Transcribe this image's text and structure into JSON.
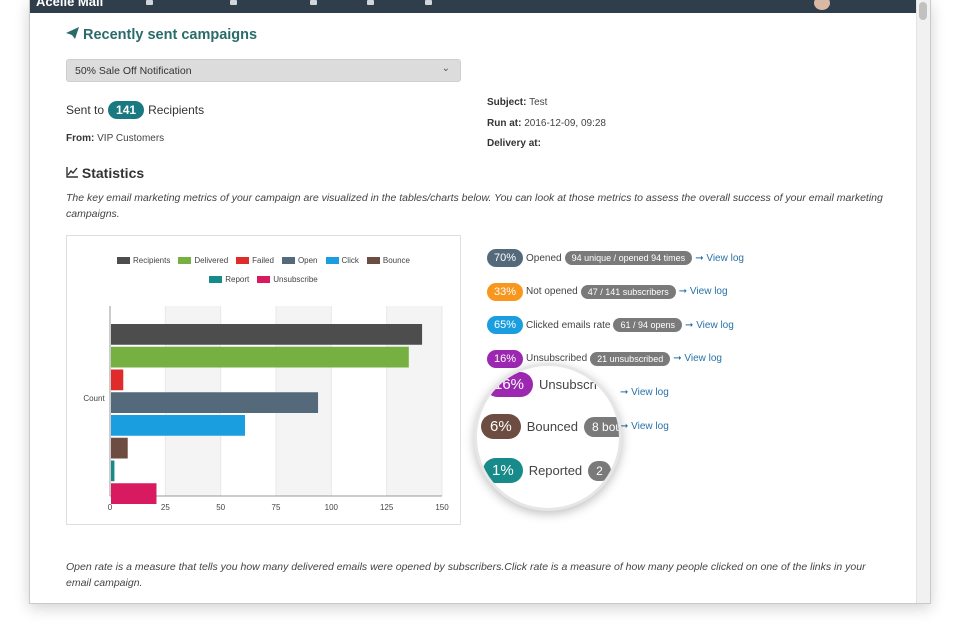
{
  "app": {
    "brand": "Acelle Mail"
  },
  "campaign": {
    "section_title": "Recently sent campaigns",
    "selected": "50% Sale Off Notification",
    "sent_to_prefix": "Sent to",
    "recipients_count": "141",
    "sent_to_suffix": "Recipients",
    "from_label": "From:",
    "from_value": "VIP Customers",
    "subject_label": "Subject:",
    "subject_value": "Test",
    "run_at_label": "Run at:",
    "run_at_value": "2016-12-09, 09:28",
    "delivery_at_label": "Delivery at:",
    "delivery_at_value": ""
  },
  "statistics": {
    "title": "Statistics",
    "description": "The key email marketing metrics of your campaign are visualized in the tables/charts below. You can look at those metrics to assess the overall success of your email marketing campaigns.",
    "footnote": "Open rate is a measure that tells you how many delivered emails were opened by subscribers.Click rate is a measure of how many people clicked on one of the links in your email campaign."
  },
  "chart_data": {
    "type": "bar",
    "orientation": "horizontal",
    "ylabel": "Count",
    "xlim": [
      0,
      150
    ],
    "xticks": [
      "0",
      "25",
      "50",
      "75",
      "100",
      "125",
      "150"
    ],
    "grid": true,
    "legend_position": "top",
    "series": [
      {
        "name": "Recipients",
        "value": 141,
        "color": "#4d4d4d"
      },
      {
        "name": "Delivered",
        "value": 135,
        "color": "#76b041"
      },
      {
        "name": "Failed",
        "value": 6,
        "color": "#e02b2b"
      },
      {
        "name": "Open",
        "value": 94,
        "color": "#546a7b"
      },
      {
        "name": "Click",
        "value": 61,
        "color": "#1a9ee0"
      },
      {
        "name": "Bounce",
        "value": 8,
        "color": "#6d4c41"
      },
      {
        "name": "Report",
        "value": 2,
        "color": "#178a8a"
      },
      {
        "name": "Unsubscribe",
        "value": 21,
        "color": "#d81b60"
      }
    ]
  },
  "metrics": [
    {
      "pct": "70%",
      "label": "Opened",
      "info": "94 unique / opened 94 times",
      "link": "View log",
      "color": "#546a7b"
    },
    {
      "pct": "33%",
      "label": "Not opened",
      "info": "47 / 141 subscribers",
      "link": "View log",
      "color": "#f7971e"
    },
    {
      "pct": "65%",
      "label": "Clicked emails rate",
      "info": "61 / 94 opens",
      "link": "View log",
      "color": "#1a9ee0"
    },
    {
      "pct": "16%",
      "label": "Unsubscribed",
      "info": "21 unsubscribed",
      "link": "View log",
      "color": "#9c27b0"
    },
    {
      "pct": "",
      "label": "",
      "info": "",
      "link": "View log",
      "color": "#6d4c41"
    },
    {
      "pct": "",
      "label": "",
      "info": "",
      "link": "View log",
      "color": "#178a8a"
    }
  ],
  "magnifier": [
    {
      "pct": "16%",
      "label": "Unsubscri",
      "info": "",
      "color": "#9c27b0"
    },
    {
      "pct": "6%",
      "label": "Bounced",
      "info": "8 bou",
      "color": "#6d4c41"
    },
    {
      "pct": "1%",
      "label": "Reported",
      "info": "2",
      "color": "#178a8a"
    }
  ]
}
